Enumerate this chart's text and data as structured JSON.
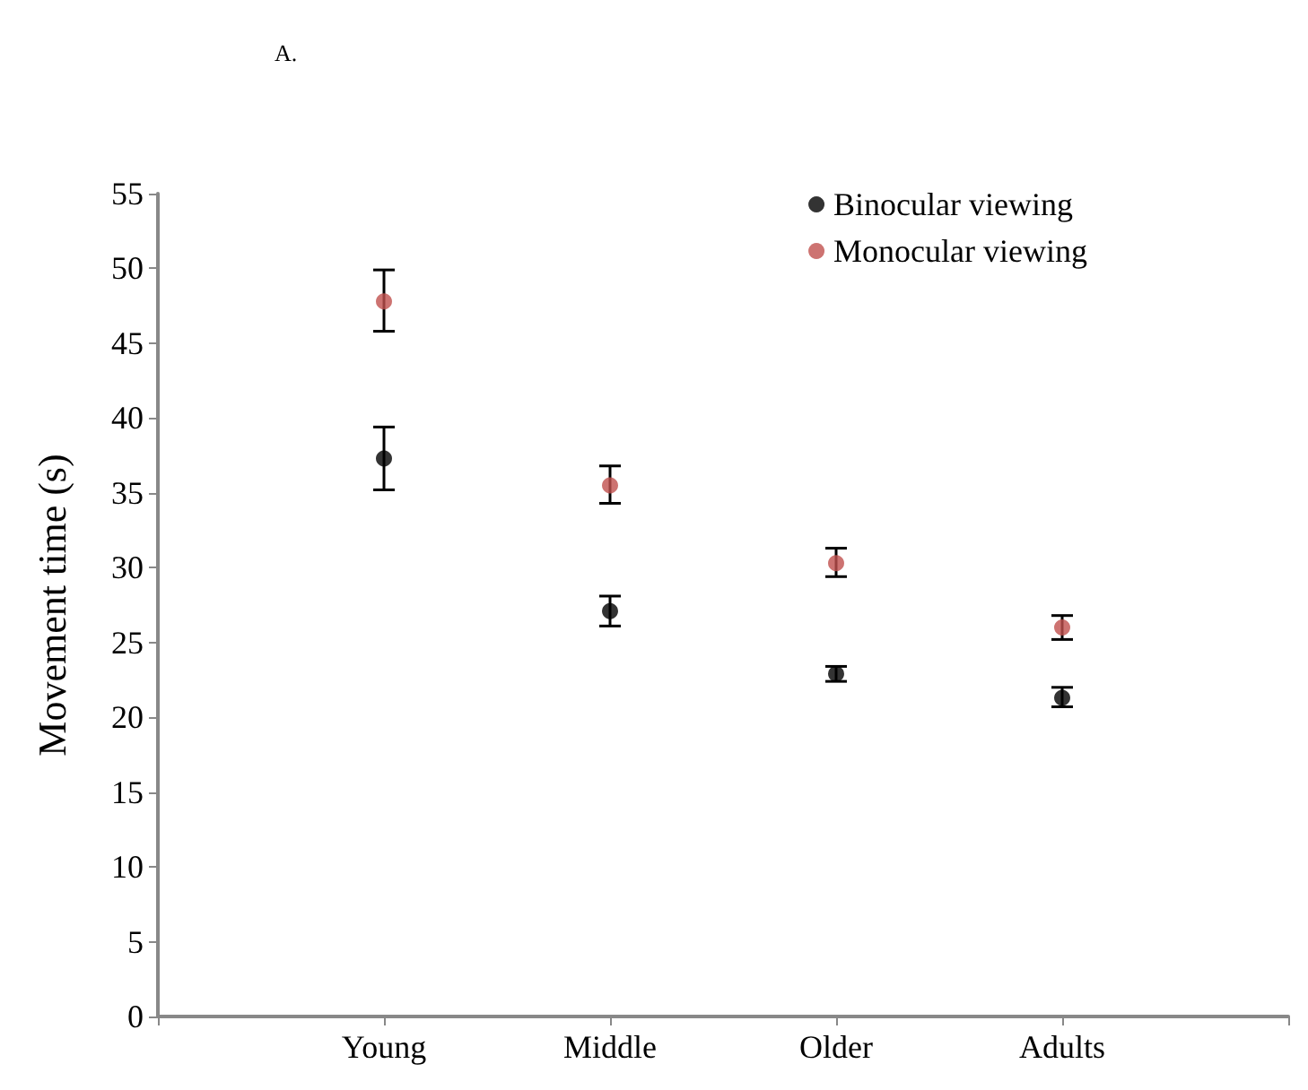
{
  "chart_data": {
    "type": "scatter",
    "title": "A.",
    "ylabel": "Movement time (s)",
    "categories": [
      null,
      "Young",
      "Middle",
      "Older",
      "Adults",
      null
    ],
    "series": [
      {
        "name": "Binocular viewing",
        "color": "#000000",
        "values": [
          null,
          37.3,
          27.1,
          22.9,
          21.3,
          null
        ],
        "errors": [
          null,
          [
            35.2,
            39.4
          ],
          [
            26.1,
            28.1
          ],
          [
            22.4,
            23.4
          ],
          [
            20.7,
            22.0
          ],
          null
        ]
      },
      {
        "name": "Monocular viewing",
        "color": "#c0504d",
        "values": [
          null,
          47.8,
          35.5,
          30.3,
          26.0,
          null
        ],
        "errors": [
          null,
          [
            45.8,
            49.9
          ],
          [
            34.3,
            36.8
          ],
          [
            29.4,
            31.3
          ],
          [
            25.2,
            26.8
          ],
          null
        ]
      }
    ],
    "ylim": [
      0,
      55
    ],
    "yticks": [
      0,
      5,
      10,
      15,
      20,
      25,
      30,
      35,
      40,
      45,
      50,
      55
    ],
    "grid": false,
    "legend": "top right",
    "marker": "circle"
  }
}
